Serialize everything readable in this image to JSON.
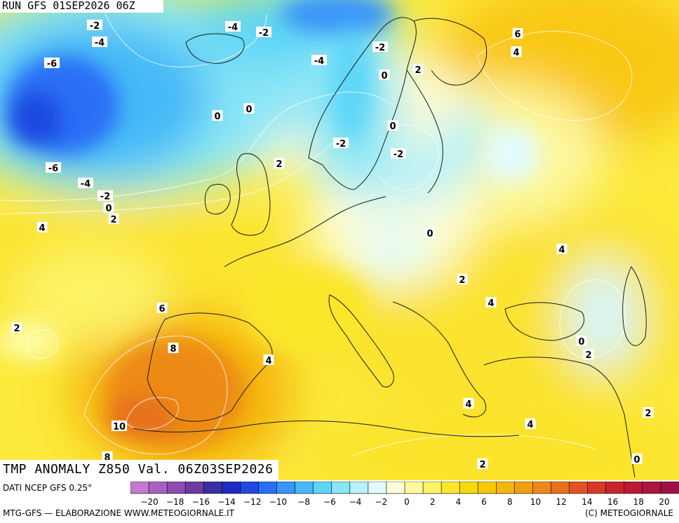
{
  "run_label": "RUN GFS 01SEP2026 06Z",
  "title": "TMP ANOMALY Z850 Val. 06Z03SEP2026",
  "source": "DATI NCEP GFS 0.25°",
  "credit": "MTG-GFS — ELABORAZIONE WWW.METEOGIORNALE.IT",
  "copyright": "(C) METEOGIORNALE",
  "legend": {
    "tick_labels": [
      "−20",
      "−18",
      "−16",
      "−14",
      "−12",
      "−10",
      "−8",
      "−6",
      "−4",
      "−2",
      "0",
      "2",
      "4",
      "6",
      "8",
      "10",
      "12",
      "14",
      "16",
      "18",
      "20"
    ],
    "colors": [
      "#c57ad0",
      "#a760c0",
      "#8e4bb0",
      "#6f39a0",
      "#3c2ea3",
      "#1d2cc2",
      "#1f48e0",
      "#2a6ef5",
      "#3a96f7",
      "#45b9f7",
      "#5ed6f7",
      "#8ae6f6",
      "#b8f1f7",
      "#e1fbfb",
      "#fdfcd6",
      "#fdfa9e",
      "#fcf266",
      "#fbe72b",
      "#f8d90a",
      "#f8c805",
      "#f5b50b",
      "#f1a012",
      "#ec8a18",
      "#e6701e",
      "#df5422",
      "#d63a27",
      "#cb232e",
      "#bd1836",
      "#ae1440",
      "#9c1248"
    ]
  },
  "contour_labels": [
    "-2",
    "-4",
    "-4",
    "-2",
    "-6",
    "-4",
    "-2",
    "6",
    "4",
    "0",
    "2",
    "0",
    "0",
    "0",
    "-2",
    "-2",
    "2",
    "-6",
    "-4",
    "-2",
    "0",
    "2",
    "4",
    "0",
    "4",
    "2",
    "4",
    "6",
    "2",
    "0",
    "8",
    "2",
    "4",
    "4",
    "10",
    "4",
    "2",
    "8",
    "2",
    "0"
  ]
}
